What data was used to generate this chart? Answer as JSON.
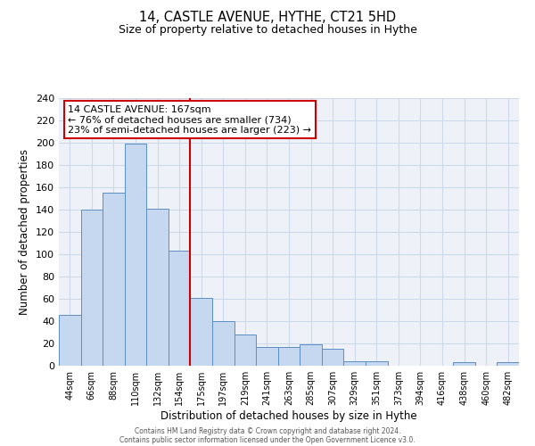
{
  "title": "14, CASTLE AVENUE, HYTHE, CT21 5HD",
  "subtitle": "Size of property relative to detached houses in Hythe",
  "xlabel": "Distribution of detached houses by size in Hythe",
  "ylabel": "Number of detached properties",
  "bin_labels": [
    "44sqm",
    "66sqm",
    "88sqm",
    "110sqm",
    "132sqm",
    "154sqm",
    "175sqm",
    "197sqm",
    "219sqm",
    "241sqm",
    "263sqm",
    "285sqm",
    "307sqm",
    "329sqm",
    "351sqm",
    "373sqm",
    "394sqm",
    "416sqm",
    "438sqm",
    "460sqm",
    "482sqm"
  ],
  "bar_heights": [
    46,
    140,
    155,
    199,
    141,
    103,
    61,
    40,
    28,
    17,
    17,
    19,
    15,
    4,
    4,
    0,
    0,
    0,
    3,
    0,
    3
  ],
  "bar_color": "#c5d8f0",
  "bar_edge_color": "#5b8ec4",
  "vline_x": 6,
  "vline_color": "#cc0000",
  "annotation_title": "14 CASTLE AVENUE: 167sqm",
  "annotation_line1": "← 76% of detached houses are smaller (734)",
  "annotation_line2": "23% of semi-detached houses are larger (223) →",
  "ylim": [
    0,
    240
  ],
  "yticks": [
    0,
    20,
    40,
    60,
    80,
    100,
    120,
    140,
    160,
    180,
    200,
    220,
    240
  ],
  "grid_color": "#ccd9ea",
  "background_color": "#eef2f8",
  "footer_line1": "Contains HM Land Registry data © Crown copyright and database right 2024.",
  "footer_line2": "Contains public sector information licensed under the Open Government Licence v3.0."
}
